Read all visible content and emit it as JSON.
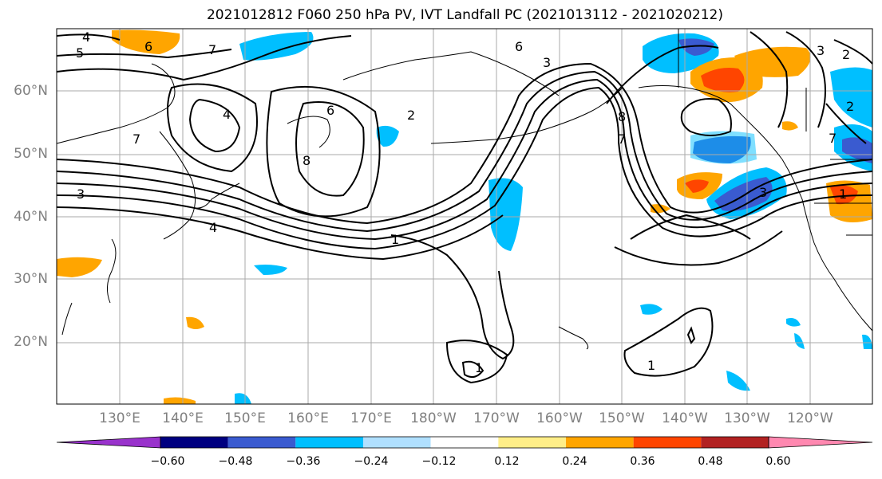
{
  "title": "2021012812 F060 250 hPa PV, IVT Landfall PC (2021013112 - 2021020212)",
  "map": {
    "lat_labels": [
      "60°N",
      "50°N",
      "40°N",
      "30°N",
      "20°N"
    ],
    "lon_labels": [
      "130°E",
      "140°E",
      "150°E",
      "160°E",
      "170°E",
      "180°W",
      "170°W",
      "160°W",
      "150°W",
      "140°W",
      "130°W",
      "120°W"
    ],
    "contour_labels": [
      "4",
      "6",
      "5",
      "7",
      "6",
      "4",
      "7",
      "8",
      "2",
      "6",
      "3",
      "8",
      "7",
      "3",
      "4",
      "1",
      "1",
      "2",
      "2",
      "1",
      "3",
      "3",
      "7",
      "1"
    ],
    "colors": {
      "land_outline": "#000000",
      "grid": "#aaaaaa",
      "contour": "#000000",
      "neg_strong": "#3a5bd0",
      "neg_mid": "#00bfff",
      "pos_mid": "#ffa500",
      "pos_strong": "#ff4500",
      "pos_extreme": "#b22222"
    }
  },
  "colorbar": {
    "levels": [
      "−0.60",
      "−0.48",
      "−0.36",
      "−0.24",
      "−0.12",
      "0.12",
      "0.24",
      "0.36",
      "0.48",
      "0.60"
    ],
    "colors": [
      "#9932cc",
      "#000080",
      "#3a5bd0",
      "#00bfff",
      "#b0e0ff",
      "#ffffff",
      "#ffee88",
      "#ffa500",
      "#ff4500",
      "#b22222",
      "#ff88b0"
    ]
  }
}
